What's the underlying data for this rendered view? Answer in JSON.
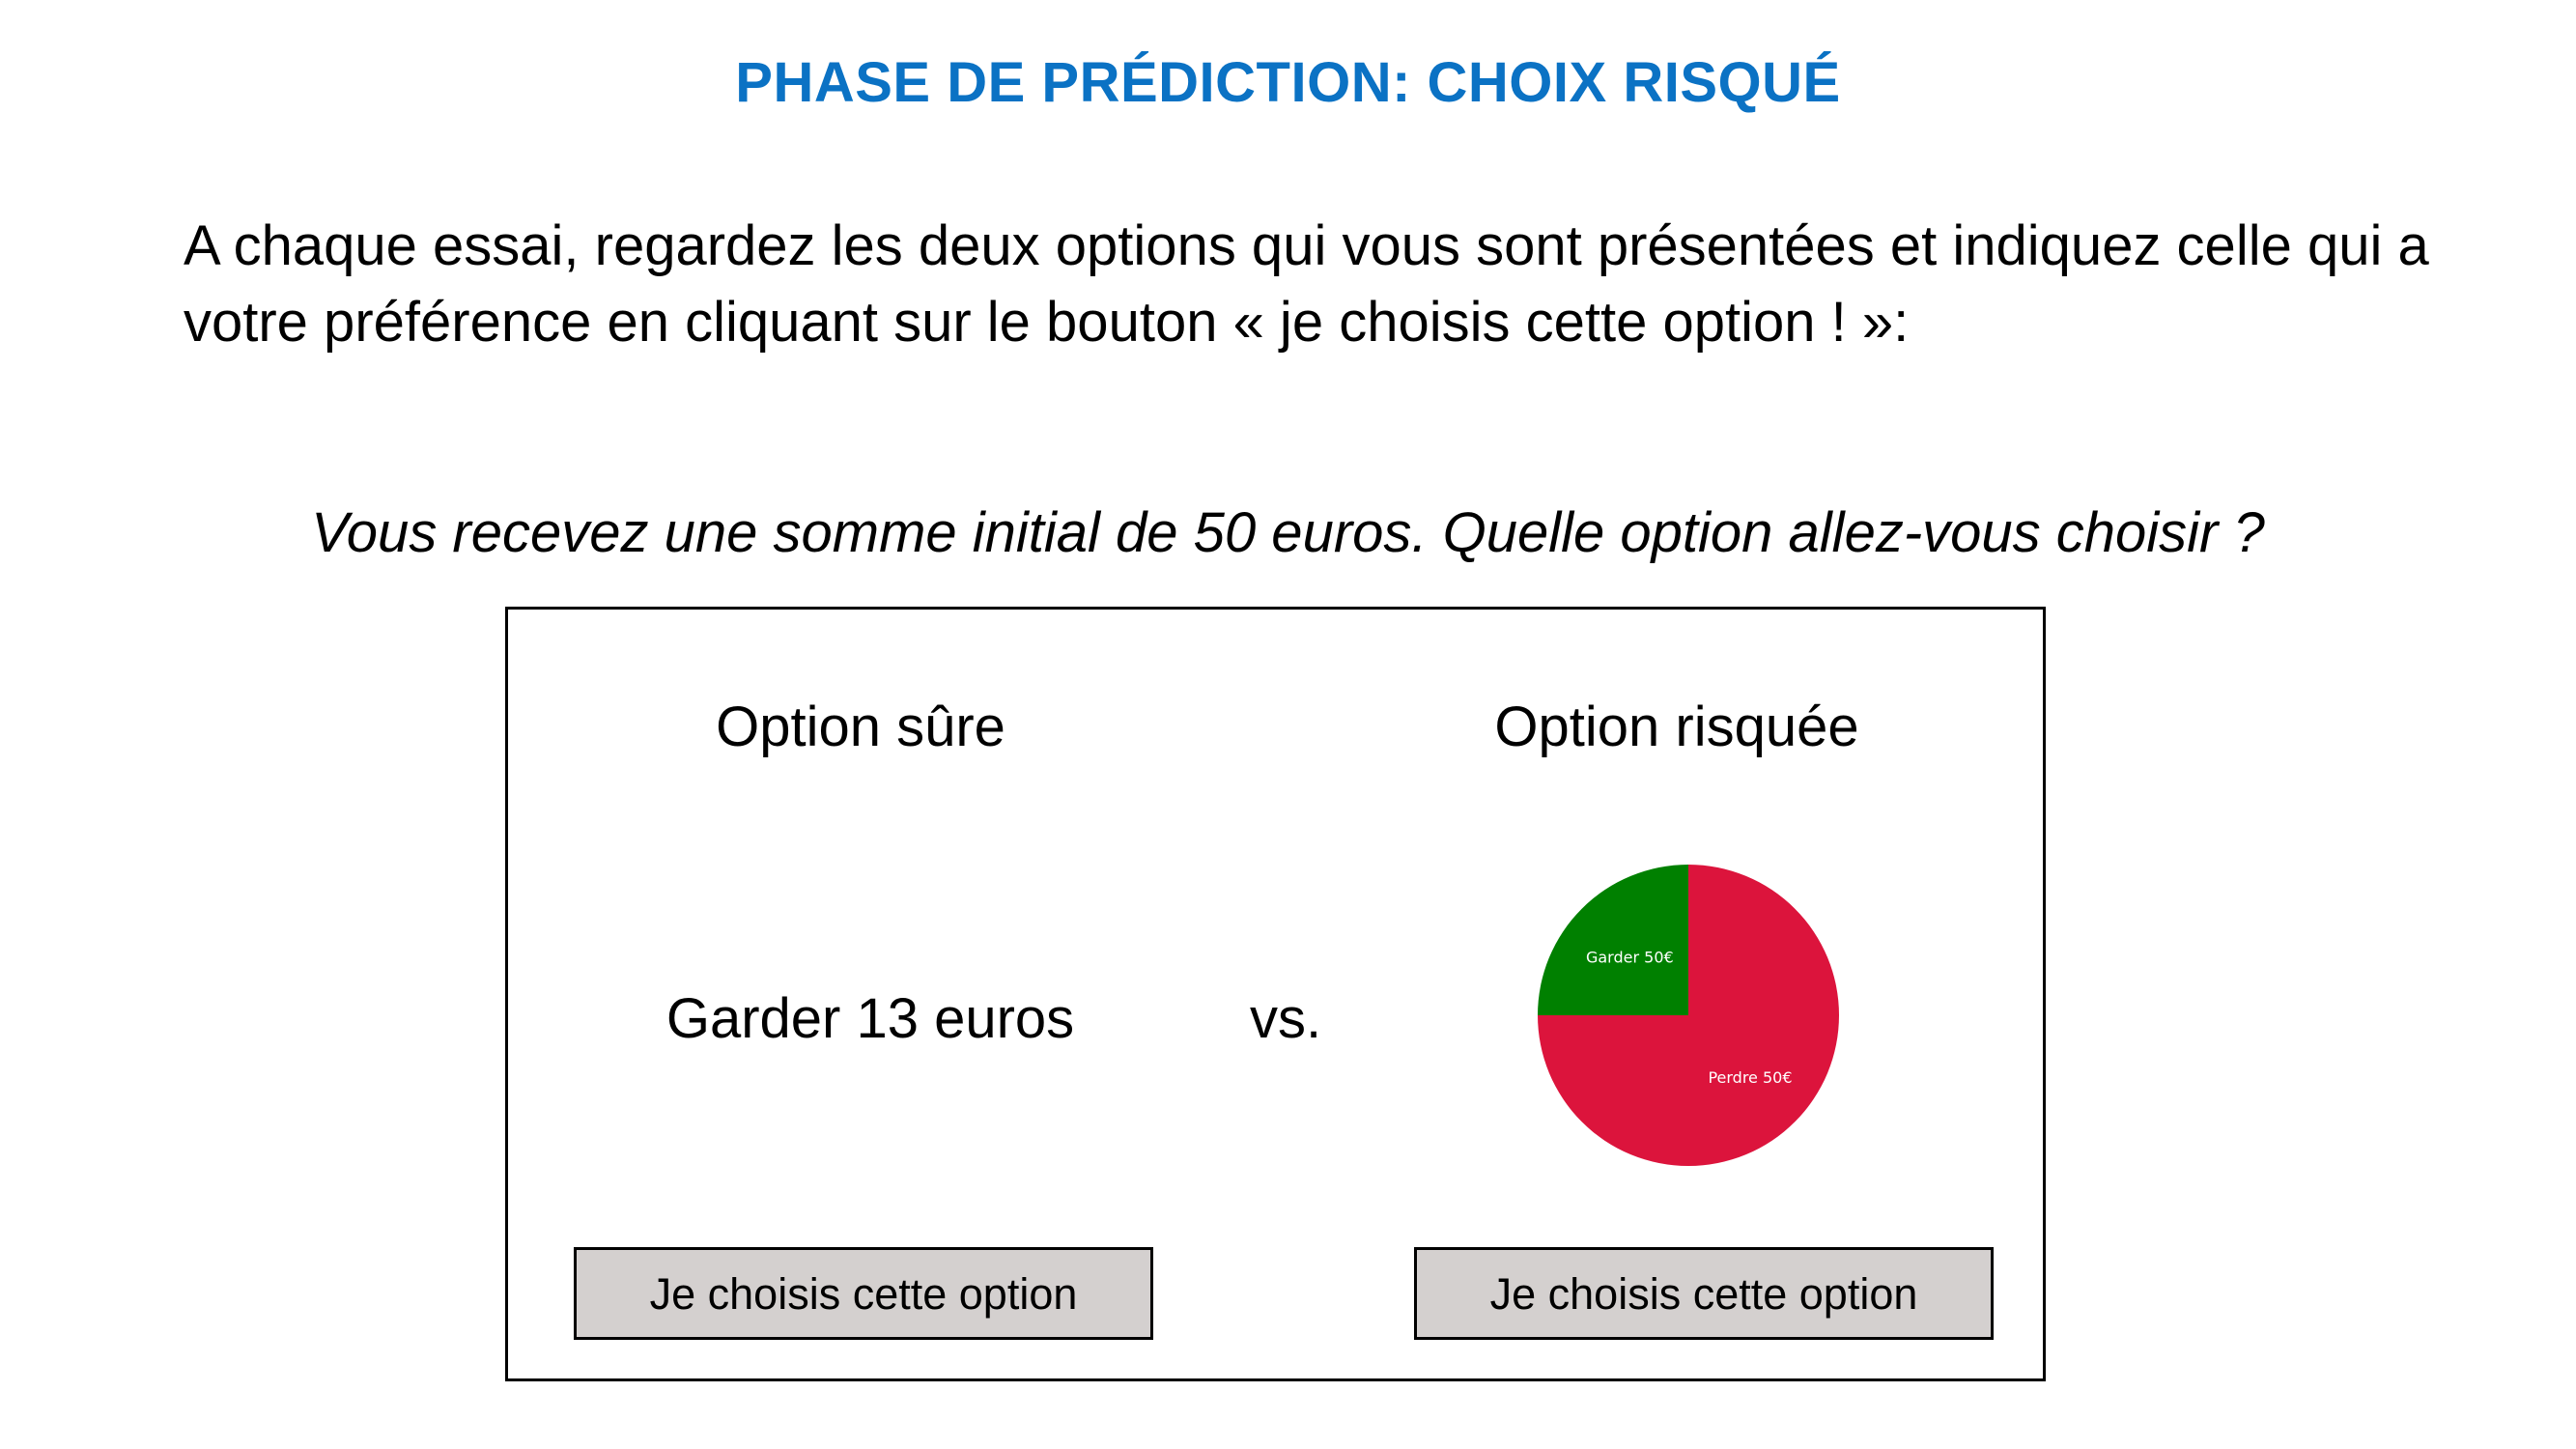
{
  "title": "PHASE DE PRÉDICTION: CHOIX RISQUÉ",
  "instructions": "A chaque essai, regardez les deux options qui vous sont présentées et indiquez celle qui a votre préférence en cliquant sur le bouton « je choisis cette option ! »:",
  "question": "Vous recevez une somme initial de 50 euros. Quelle option allez-vous choisir ?",
  "safe_option": {
    "title": "Option sûre",
    "amount_label": "Garder 13 euros",
    "button_label": "Je choisis cette option"
  },
  "vs_label": "vs.",
  "risky_option": {
    "title": "Option risquée",
    "button_label": "Je choisis cette option",
    "pie": {
      "slices": [
        {
          "label": "Garder 50€",
          "fraction": 0.25,
          "color": "#008000"
        },
        {
          "label": "Perdre 50€",
          "fraction": 0.75,
          "color": "#dc143c"
        }
      ]
    }
  },
  "colors": {
    "title": "#0b72c4",
    "button_bg": "#d4d0cf"
  }
}
